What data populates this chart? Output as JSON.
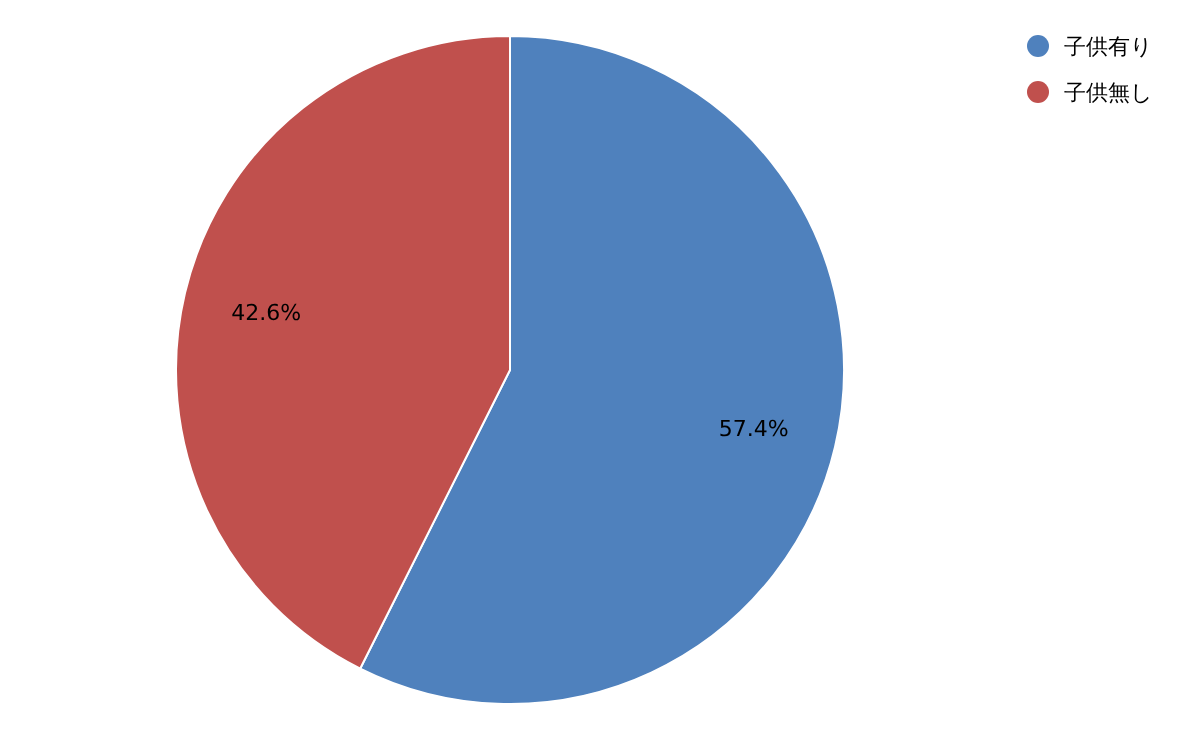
{
  "chart_data": {
    "type": "pie",
    "categories": [
      "子供有り",
      "子供無し"
    ],
    "values": [
      57.4,
      42.6
    ],
    "colors": [
      "#4f81bd",
      "#c0504d"
    ],
    "value_labels": [
      "57.4%",
      "42.6%"
    ],
    "legend": "top right"
  }
}
